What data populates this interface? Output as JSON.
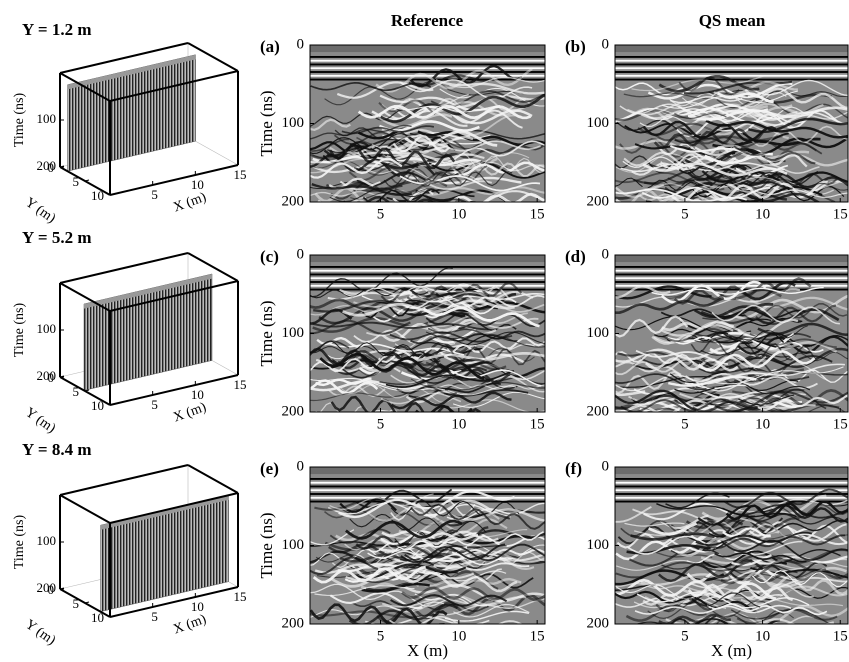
{
  "columns": [
    "Reference",
    "QS mean"
  ],
  "rows": [
    {
      "label": "Y = 1.2 m",
      "panels": [
        "(a)",
        "(b)"
      ]
    },
    {
      "label": "Y = 5.2 m",
      "panels": [
        "(c)",
        "(d)"
      ]
    },
    {
      "label": "Y = 8.4 m",
      "panels": [
        "(e)",
        "(f)"
      ]
    }
  ],
  "axes": {
    "y_label": "Time (ns)",
    "x_label": "X (m)",
    "ylim": [
      0,
      200
    ],
    "yticks": [
      0,
      100,
      200
    ],
    "xlim": [
      0.5,
      15.5
    ],
    "xticks": [
      5,
      10,
      15
    ]
  },
  "cube": {
    "z_label": "Time (ns)",
    "y_label": "Y (m)",
    "x_label": "X (m)",
    "xlim": [
      0,
      15
    ],
    "ylim": [
      0,
      10
    ],
    "zlim": [
      0,
      200
    ],
    "zticks": [
      100,
      200
    ],
    "yticks": [
      0,
      5,
      10
    ],
    "xticks": [
      5,
      10,
      15
    ]
  }
}
